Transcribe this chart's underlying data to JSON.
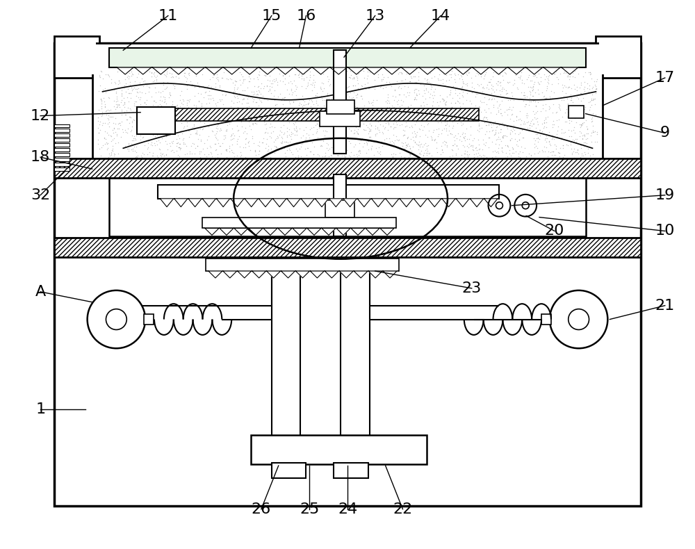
{
  "bg_color": "#ffffff",
  "lc": "#000000",
  "figsize": [
    10.0,
    7.9
  ],
  "dpi": 100
}
